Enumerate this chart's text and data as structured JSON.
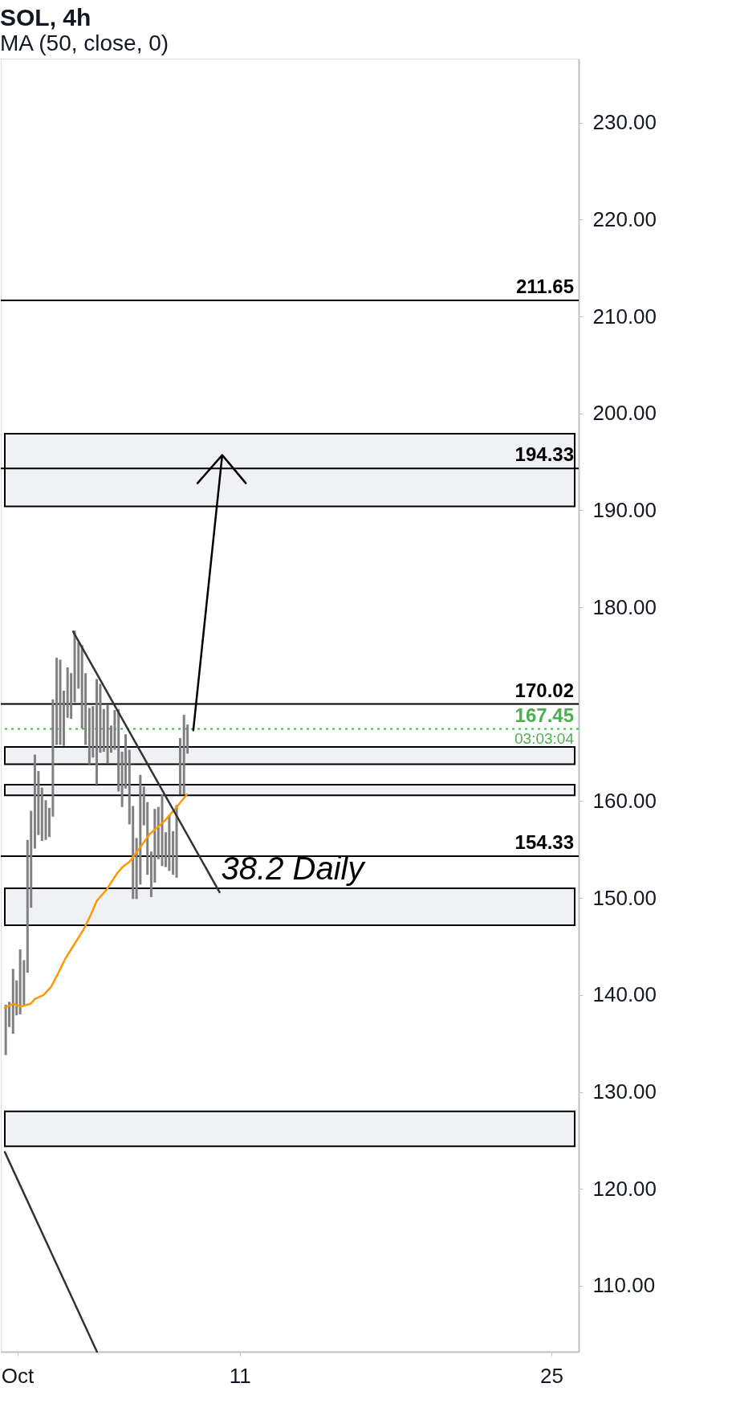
{
  "chart_data": {
    "type": "bar",
    "title": "SOL, 4h",
    "subtitle": "MA (50, close, 0)",
    "xlim": [
      0.44,
      26.05
    ],
    "ylim": [
      103.2,
      236.6
    ],
    "xticks": [
      {
        "value": 1,
        "label": "Oct"
      },
      11,
      25
    ],
    "yticks": [
      {
        "value": 110,
        "label": "110.00"
      },
      {
        "value": 120,
        "label": "120.00"
      },
      {
        "value": 130,
        "label": "130.00"
      },
      {
        "value": 140,
        "label": "140.00"
      },
      {
        "value": 150,
        "label": "150.00"
      },
      {
        "value": 160,
        "label": "160.00"
      },
      {
        "value": 180,
        "label": "180.00"
      },
      {
        "value": 190,
        "label": "190.00"
      },
      {
        "value": 200,
        "label": "200.00"
      },
      {
        "value": 210,
        "label": "210.00"
      },
      {
        "value": 220,
        "label": "220.00"
      },
      {
        "value": 230,
        "label": "230.00"
      }
    ],
    "bands": [
      {
        "axis": "y",
        "from": 190.4,
        "to": 197.9,
        "label": null,
        "color": "#f0f1f4"
      },
      {
        "axis": "y",
        "from": 163.8,
        "to": 165.6,
        "label": null,
        "color": "#f0f1f4"
      },
      {
        "axis": "y",
        "from": 160.6,
        "to": 161.7,
        "label": null,
        "color": "#f0f1f4"
      },
      {
        "axis": "y",
        "from": 147.2,
        "to": 151.0,
        "label": null,
        "color": "#f0f1f4"
      },
      {
        "axis": "y",
        "from": 124.4,
        "to": 128.0,
        "label": null,
        "color": "#f0f1f4"
      }
    ],
    "ref_lines": [
      {
        "axis": "y",
        "value": 211.65,
        "label": "211.65",
        "color": "#000000",
        "line_style": "solid"
      },
      {
        "axis": "y",
        "value": 194.33,
        "label": "194.33",
        "color": "#000000",
        "line_style": "solid"
      },
      {
        "axis": "y",
        "value": 170.02,
        "label": "170.02",
        "color": "#000000",
        "line_style": "solid"
      },
      {
        "axis": "y",
        "value": 154.33,
        "label": "154.33",
        "color": "#000000",
        "line_style": "solid"
      },
      {
        "axis": "y",
        "value": 167.45,
        "label": "167.45",
        "color": "#4caf50",
        "line_style": "dotted"
      }
    ],
    "annotations": [
      {
        "text": "38.2 Daily",
        "x": 10.09,
        "y": 150.6
      },
      "03:03:04"
    ],
    "series": [
      {
        "color": "#808080",
        "x": [
          0.48,
          0.64,
          0.81,
          0.97,
          1.13,
          1.3,
          1.46,
          1.62,
          1.79,
          1.95,
          2.11,
          2.28,
          2.44,
          2.6,
          2.77,
          2.93,
          3.09,
          3.26,
          3.42,
          3.58,
          3.75,
          3.91,
          4.07,
          4.24,
          4.4,
          4.57,
          4.73,
          4.89,
          5.06,
          5.22,
          5.38,
          5.55,
          5.71,
          5.87,
          6.04,
          6.2,
          6.36,
          6.53,
          6.69,
          6.85,
          7.02,
          7.18,
          7.34,
          7.51,
          7.67,
          7.83,
          8.0,
          8.16,
          8.32,
          8.49,
          8.65
        ],
        "base": [
          133.8,
          136.7,
          136.0,
          137.9,
          138.0,
          138.9,
          142.3,
          149.0,
          155.1,
          156.5,
          155.9,
          156.0,
          156.3,
          158.4,
          165.8,
          165.8,
          165.7,
          168.6,
          168.5,
          170.2,
          171.6,
          167.5,
          165.8,
          163.8,
          164.5,
          161.7,
          165.0,
          165.1,
          163.9,
          165.0,
          165.3,
          161.0,
          159.4,
          161.3,
          157.6,
          149.9,
          149.9,
          151.4,
          157.5,
          152.4,
          150.1,
          151.6,
          154.0,
          153.3,
          153.2,
          152.8,
          152.4,
          152.1,
          160.7,
          160.7,
          164.9
        ],
        "values": [
          5.2,
          2.6,
          6.7,
          3.6,
          6.7,
          4.7,
          13.7,
          10.0,
          9.7,
          6.6,
          5.5,
          4.1,
          3.0,
          12.1,
          9.0,
          8.8,
          5.7,
          5.2,
          4.7,
          7.4,
          4.8,
          8.6,
          7.4,
          5.8,
          5.3,
          10.9,
          7.1,
          4.4,
          6.0,
          2.8,
          4.1,
          8.5,
          5.7,
          5.6,
          7.7,
          9.6,
          6.3,
          11.3,
          4.0,
          7.5,
          4.7,
          7.6,
          5.4,
          7.4,
          3.6,
          5.8,
          4.5,
          7.5,
          5.8,
          8.2,
          3.0
        ]
      },
      {
        "type": "line",
        "color": "#ff9800",
        "x": [
          0.44,
          0.83,
          1.15,
          1.6,
          1.8,
          2.18,
          2.51,
          2.83,
          3.15,
          3.47,
          3.99,
          4.31,
          4.57,
          5.02,
          5.47,
          5.73,
          6.02,
          6.13,
          6.48,
          6.95,
          7.3,
          7.64,
          8.05,
          8.34,
          8.63
        ],
        "values": [
          138.7,
          139.1,
          138.8,
          139.1,
          139.6,
          140.0,
          140.8,
          142.2,
          143.7,
          144.9,
          146.8,
          148.3,
          149.7,
          150.9,
          152.5,
          153.2,
          153.7,
          154.0,
          155.1,
          156.6,
          157.3,
          158.0,
          159.1,
          159.9,
          160.7
        ]
      },
      {
        "type": "line",
        "color": "#333333",
        "x": [
          3.51,
          10.09
        ],
        "values": [
          177.5,
          150.6
        ]
      },
      {
        "type": "line",
        "color": "#333333",
        "x": [
          0.44,
          4.58
        ],
        "values": [
          123.8,
          103.2
        ]
      },
      {
        "type": "line",
        "color": "#000000",
        "x": [
          8.91,
          10.21,
          9.1,
          10.21,
          11.27
        ],
        "values": [
          167.3,
          195.7,
          192.8,
          195.7,
          192.8
        ]
      }
    ]
  }
}
